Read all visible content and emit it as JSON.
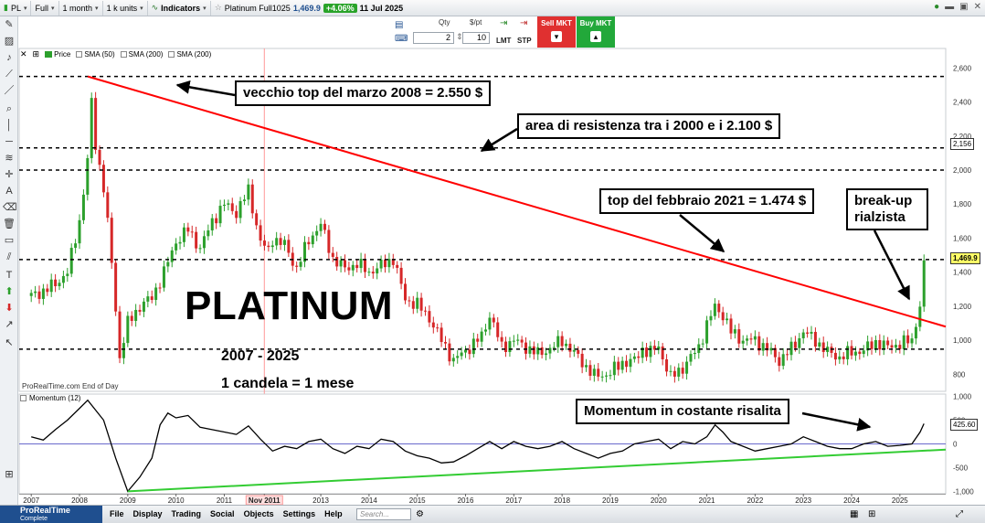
{
  "toolbar": {
    "symbol": "PL",
    "range": "Full",
    "period": "1 month",
    "units": "1 k units",
    "indicators_label": "Indicators",
    "instrument": "Platinum Full1025",
    "last_price": "1,469.9",
    "change": "+4.06%",
    "date": "11 Jul 2025"
  },
  "order": {
    "qty_label": "Qty",
    "qty_value": "2",
    "per_pt_label": "$/pt",
    "per_pt_value": "10",
    "lmt_label": "LMT",
    "stp_label": "STP",
    "sell_label": "Sell MKT",
    "buy_label": "Buy MKT"
  },
  "legend": {
    "price": "Price",
    "sma1": "SMA (50)",
    "sma2": "SMA (200)",
    "sma3": "SMA (200)"
  },
  "momentum_legend": "Momentum (12)",
  "source": "ProRealTime.com   End of Day",
  "bottom": {
    "brand": "ProRealTime",
    "brand_sub": "Complete",
    "menu": [
      "File",
      "Display",
      "Trading",
      "Social",
      "Objects",
      "Settings",
      "Help"
    ],
    "search_placeholder": "Search..."
  },
  "annotations": {
    "old_top": "vecchio top del marzo 2008 = 2.550 $",
    "resistance": "area di resistenza tra i 2000 e i 2.100 $",
    "feb2021": "top del febbraio 2021 = 1.474 $",
    "breakup": "break-up rialzista",
    "momentum": "Momentum in costante risalita",
    "title": "PLATINUM",
    "years": "2007 - 2025",
    "candle": "1 candela = 1 mese"
  },
  "badges": {
    "resistance_level": "2,156",
    "last": "1,469.9",
    "momentum_last": "425.60"
  },
  "colors": {
    "up": "#2ca02c",
    "down": "#d62728",
    "trendline": "#ff0000",
    "momentum_trend": "#33cc33",
    "momentum_line": "#000000",
    "cursor_line": "#ff9999",
    "badge_last": "#ffff66",
    "badge_mom": "#ffffff",
    "sell": "#e03030",
    "buy": "#22a83a"
  },
  "chart_data": [
    {
      "type": "candlestick",
      "title": "",
      "x_range": [
        2006.75,
        2025.95
      ],
      "ylim": [
        700,
        2650
      ],
      "grid": false,
      "y_ticks": [
        800,
        1000,
        1200,
        1400,
        1600,
        1800,
        2000,
        2200,
        2400,
        2600
      ],
      "x_ticks": [
        "2007",
        "2008",
        "2009",
        "2010",
        "2011",
        "Nov 2011",
        "2013",
        "2014",
        "2015",
        "2016",
        "2017",
        "2018",
        "2019",
        "2020",
        "2021",
        "2022",
        "2023",
        "2024",
        "2025"
      ],
      "highlight_tick": "Nov 2011",
      "close_series": [
        [
          2007.0,
          1260
        ],
        [
          2007.25,
          1290
        ],
        [
          2007.5,
          1330
        ],
        [
          2007.75,
          1400
        ],
        [
          2008.0,
          1700
        ],
        [
          2008.17,
          2060
        ],
        [
          2008.25,
          2400
        ],
        [
          2008.33,
          2150
        ],
        [
          2008.5,
          1900
        ],
        [
          2008.67,
          1450
        ],
        [
          2008.83,
          900
        ],
        [
          2009.0,
          1100
        ],
        [
          2009.25,
          1200
        ],
        [
          2009.5,
          1250
        ],
        [
          2009.75,
          1400
        ],
        [
          2010.0,
          1580
        ],
        [
          2010.25,
          1650
        ],
        [
          2010.5,
          1540
        ],
        [
          2010.75,
          1700
        ],
        [
          2011.0,
          1800
        ],
        [
          2011.25,
          1750
        ],
        [
          2011.5,
          1880
        ],
        [
          2011.75,
          1580
        ],
        [
          2011.92,
          1520
        ],
        [
          2012.0,
          1600
        ],
        [
          2012.25,
          1560
        ],
        [
          2012.5,
          1420
        ],
        [
          2012.75,
          1590
        ],
        [
          2013.0,
          1680
        ],
        [
          2013.25,
          1480
        ],
        [
          2013.5,
          1420
        ],
        [
          2013.75,
          1450
        ],
        [
          2014.0,
          1400
        ],
        [
          2014.33,
          1450
        ],
        [
          2014.5,
          1480
        ],
        [
          2014.75,
          1240
        ],
        [
          2015.0,
          1210
        ],
        [
          2015.25,
          1130
        ],
        [
          2015.5,
          1000
        ],
        [
          2015.75,
          880
        ],
        [
          2016.0,
          940
        ],
        [
          2016.33,
          1020
        ],
        [
          2016.5,
          1150
        ],
        [
          2016.75,
          960
        ],
        [
          2017.0,
          1000
        ],
        [
          2017.25,
          960
        ],
        [
          2017.5,
          920
        ],
        [
          2017.75,
          950
        ],
        [
          2018.0,
          1000
        ],
        [
          2018.33,
          900
        ],
        [
          2018.67,
          790
        ],
        [
          2018.92,
          800
        ],
        [
          2019.0,
          810
        ],
        [
          2019.25,
          870
        ],
        [
          2019.5,
          880
        ],
        [
          2019.67,
          950
        ],
        [
          2019.83,
          930
        ],
        [
          2020.0,
          960
        ],
        [
          2020.25,
          780
        ],
        [
          2020.5,
          840
        ],
        [
          2020.67,
          900
        ],
        [
          2020.83,
          960
        ],
        [
          2021.0,
          1090
        ],
        [
          2021.17,
          1200
        ],
        [
          2021.33,
          1150
        ],
        [
          2021.5,
          1050
        ],
        [
          2021.75,
          1000
        ],
        [
          2022.0,
          1000
        ],
        [
          2022.25,
          950
        ],
        [
          2022.5,
          880
        ],
        [
          2022.75,
          950
        ],
        [
          2023.0,
          1050
        ],
        [
          2023.25,
          1000
        ],
        [
          2023.5,
          930
        ],
        [
          2023.75,
          900
        ],
        [
          2024.0,
          930
        ],
        [
          2024.25,
          940
        ],
        [
          2024.5,
          990
        ],
        [
          2024.75,
          960
        ],
        [
          2025.0,
          980
        ],
        [
          2025.25,
          1000
        ],
        [
          2025.42,
          1210
        ],
        [
          2025.5,
          1469.9
        ]
      ],
      "horizontal_levels": [
        2550,
        2130,
        2000,
        1474,
        948
      ],
      "trendline": [
        [
          2008.17,
          2550
        ],
        [
          2025.95,
          1080
        ]
      ],
      "annotations": [
        "vecchio top del marzo 2008 = 2.550 $",
        "area di resistenza tra i 2000 e i 2.100 $",
        "top del febbraio 2021 = 1.474 $",
        "break-up rialzista",
        "PLATINUM",
        "2007 - 2025",
        "1 candela = 1 mese"
      ]
    },
    {
      "type": "line",
      "title": "Momentum (12)",
      "x_range": [
        2006.75,
        2025.95
      ],
      "ylim": [
        -1050,
        1050
      ],
      "y_ticks": [
        -1000,
        -500,
        0,
        500,
        1000
      ],
      "zero_line": true,
      "series": [
        {
          "values": [
            [
              2007.0,
              150
            ],
            [
              2007.25,
              80
            ],
            [
              2007.5,
              300
            ],
            [
              2007.75,
              500
            ],
            [
              2008.0,
              750
            ],
            [
              2008.17,
              920
            ],
            [
              2008.5,
              500
            ],
            [
              2008.75,
              -300
            ],
            [
              2009.0,
              -1000
            ],
            [
              2009.25,
              -700
            ],
            [
              2009.5,
              -300
            ],
            [
              2009.67,
              400
            ],
            [
              2009.83,
              650
            ],
            [
              2010.0,
              550
            ],
            [
              2010.25,
              600
            ],
            [
              2010.5,
              350
            ],
            [
              2010.75,
              300
            ],
            [
              2011.0,
              250
            ],
            [
              2011.25,
              200
            ],
            [
              2011.5,
              380
            ],
            [
              2011.75,
              100
            ],
            [
              2012.0,
              -150
            ],
            [
              2012.25,
              -50
            ],
            [
              2012.5,
              -100
            ],
            [
              2012.75,
              50
            ],
            [
              2013.0,
              100
            ],
            [
              2013.25,
              -100
            ],
            [
              2013.5,
              -200
            ],
            [
              2013.75,
              -50
            ],
            [
              2014.0,
              -100
            ],
            [
              2014.25,
              100
            ],
            [
              2014.5,
              50
            ],
            [
              2014.75,
              -150
            ],
            [
              2015.0,
              -250
            ],
            [
              2015.25,
              -300
            ],
            [
              2015.5,
              -400
            ],
            [
              2015.75,
              -380
            ],
            [
              2016.0,
              -250
            ],
            [
              2016.25,
              -100
            ],
            [
              2016.5,
              50
            ],
            [
              2016.75,
              -100
            ],
            [
              2017.0,
              50
            ],
            [
              2017.25,
              -50
            ],
            [
              2017.5,
              -100
            ],
            [
              2017.75,
              -50
            ],
            [
              2018.0,
              50
            ],
            [
              2018.25,
              -100
            ],
            [
              2018.5,
              -200
            ],
            [
              2018.75,
              -300
            ],
            [
              2019.0,
              -200
            ],
            [
              2019.25,
              -150
            ],
            [
              2019.5,
              0
            ],
            [
              2019.75,
              50
            ],
            [
              2020.0,
              100
            ],
            [
              2020.25,
              -100
            ],
            [
              2020.5,
              50
            ],
            [
              2020.75,
              0
            ],
            [
              2021.0,
              150
            ],
            [
              2021.17,
              400
            ],
            [
              2021.33,
              250
            ],
            [
              2021.5,
              50
            ],
            [
              2021.75,
              -50
            ],
            [
              2022.0,
              -150
            ],
            [
              2022.25,
              -100
            ],
            [
              2022.5,
              -50
            ],
            [
              2022.75,
              0
            ],
            [
              2023.0,
              150
            ],
            [
              2023.25,
              50
            ],
            [
              2023.5,
              -50
            ],
            [
              2023.75,
              -100
            ],
            [
              2024.0,
              -100
            ],
            [
              2024.25,
              0
            ],
            [
              2024.5,
              50
            ],
            [
              2024.75,
              -50
            ],
            [
              2025.0,
              -30
            ],
            [
              2025.25,
              0
            ],
            [
              2025.42,
              250
            ],
            [
              2025.5,
              425.6
            ]
          ]
        }
      ],
      "trendline": [
        [
          2009.0,
          -1000
        ],
        [
          2025.95,
          -120
        ]
      ],
      "annotations": [
        "Momentum in costante risalita"
      ]
    }
  ]
}
